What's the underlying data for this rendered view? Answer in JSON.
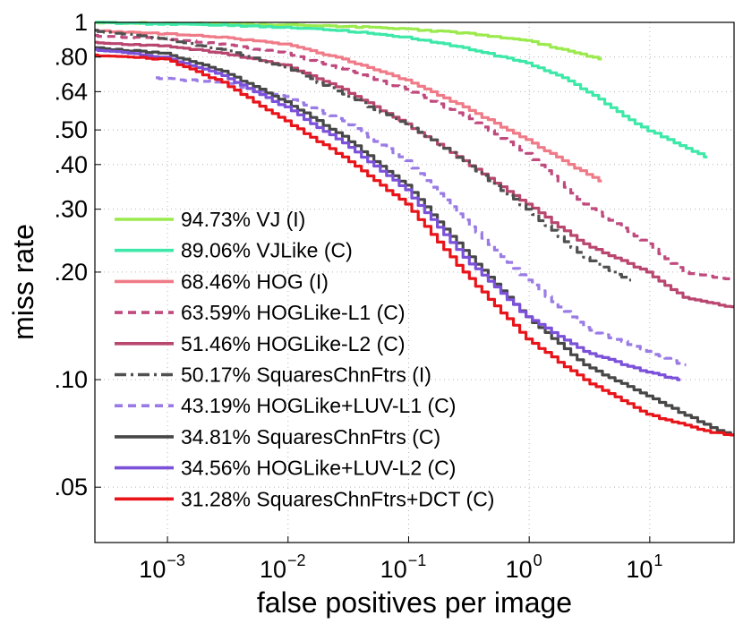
{
  "chart_data": {
    "type": "line",
    "xlabel": "false positives per image",
    "ylabel": "miss rate",
    "xscale": "log",
    "yscale": "log",
    "xlim": [
      0.00025,
      50
    ],
    "ylim": [
      0.035,
      1
    ],
    "grid": true,
    "legend_position": "bottom-left",
    "x_ticks": [
      {
        "value": 0.001,
        "base": "10",
        "exp": "−3"
      },
      {
        "value": 0.01,
        "base": "10",
        "exp": "−2"
      },
      {
        "value": 0.1,
        "base": "10",
        "exp": "−1"
      },
      {
        "value": 1,
        "base": "10",
        "exp": "0"
      },
      {
        "value": 10,
        "base": "10",
        "exp": "1"
      }
    ],
    "y_ticks": [
      {
        "value": 1,
        "label": "1"
      },
      {
        "value": 0.8,
        "label": ".80"
      },
      {
        "value": 0.64,
        "label": ".64"
      },
      {
        "value": 0.5,
        "label": ".50"
      },
      {
        "value": 0.4,
        "label": ".40"
      },
      {
        "value": 0.3,
        "label": ".30"
      },
      {
        "value": 0.2,
        "label": ".20"
      },
      {
        "value": 0.1,
        "label": ".10"
      },
      {
        "value": 0.05,
        "label": ".05"
      }
    ],
    "series": [
      {
        "name": "94.73% VJ (I)",
        "color": "#9bea4d",
        "dash": "solid",
        "x": [
          0.00025,
          0.001,
          0.01,
          0.05,
          0.1,
          0.3,
          1,
          2,
          4
        ],
        "y": [
          1.0,
          0.995,
          0.985,
          0.97,
          0.96,
          0.935,
          0.89,
          0.84,
          0.79
        ]
      },
      {
        "name": "89.06% VJLike (C)",
        "color": "#3de8a8",
        "dash": "solid",
        "x": [
          0.00025,
          0.001,
          0.003,
          0.01,
          0.03,
          0.1,
          0.3,
          1,
          2,
          4,
          8,
          15,
          30
        ],
        "y": [
          1.0,
          0.99,
          0.985,
          0.97,
          0.95,
          0.91,
          0.85,
          0.77,
          0.7,
          0.61,
          0.52,
          0.47,
          0.42
        ]
      },
      {
        "name": "68.46% HOG (I)",
        "color": "#f07b88",
        "dash": "solid",
        "x": [
          0.00025,
          0.001,
          0.003,
          0.01,
          0.03,
          0.1,
          0.3,
          1,
          2,
          4
        ],
        "y": [
          0.95,
          0.93,
          0.91,
          0.87,
          0.79,
          0.69,
          0.58,
          0.47,
          0.41,
          0.36
        ]
      },
      {
        "name": "63.59% HOGLike-L1 (C)",
        "color": "#c0497e",
        "dash": "dash",
        "x": [
          0.00025,
          0.001,
          0.003,
          0.01,
          0.03,
          0.1,
          0.3,
          1,
          3,
          10,
          20,
          50
        ],
        "y": [
          0.92,
          0.9,
          0.87,
          0.82,
          0.74,
          0.65,
          0.55,
          0.43,
          0.31,
          0.24,
          0.2,
          0.19
        ]
      },
      {
        "name": "51.46% HOGLike-L2 (C)",
        "color": "#b9466f",
        "dash": "solid",
        "x": [
          0.00025,
          0.001,
          0.003,
          0.01,
          0.03,
          0.1,
          0.3,
          1,
          3,
          10,
          20,
          50
        ],
        "y": [
          0.88,
          0.86,
          0.82,
          0.76,
          0.65,
          0.52,
          0.41,
          0.31,
          0.24,
          0.2,
          0.17,
          0.16
        ]
      },
      {
        "name": "50.17% SquaresChnFtrs (I)",
        "color": "#505050",
        "dash": "dashdot",
        "x": [
          0.00025,
          0.001,
          0.003,
          0.01,
          0.03,
          0.1,
          0.3,
          1,
          3,
          7
        ],
        "y": [
          0.95,
          0.9,
          0.84,
          0.75,
          0.63,
          0.52,
          0.41,
          0.3,
          0.22,
          0.19
        ]
      },
      {
        "name": "43.19% HOGLike+LUV-L1 (C)",
        "color": "#9a7be6",
        "dash": "dash",
        "x": [
          0.0008,
          0.003,
          0.01,
          0.03,
          0.1,
          0.3,
          1,
          3,
          10,
          20
        ],
        "y": [
          0.7,
          0.68,
          0.62,
          0.53,
          0.41,
          0.28,
          0.19,
          0.14,
          0.12,
          0.11
        ]
      },
      {
        "name": "34.81% SquaresChnFtrs (C)",
        "color": "#474747",
        "dash": "solid",
        "x": [
          0.00025,
          0.001,
          0.003,
          0.01,
          0.03,
          0.1,
          0.3,
          1,
          3,
          10,
          30,
          50
        ],
        "y": [
          0.85,
          0.82,
          0.73,
          0.6,
          0.48,
          0.35,
          0.23,
          0.15,
          0.11,
          0.09,
          0.075,
          0.07
        ]
      },
      {
        "name": "34.56% HOGLike+LUV-L2 (C)",
        "color": "#7b51d9",
        "dash": "solid",
        "x": [
          0.00025,
          0.001,
          0.003,
          0.01,
          0.03,
          0.1,
          0.3,
          1,
          3,
          10,
          18
        ],
        "y": [
          0.84,
          0.8,
          0.71,
          0.58,
          0.46,
          0.34,
          0.22,
          0.15,
          0.12,
          0.105,
          0.1
        ]
      },
      {
        "name": "31.28% SquaresChnFtrs+DCT (C)",
        "color": "#e8141a",
        "dash": "solid",
        "x": [
          0.00025,
          0.001,
          0.003,
          0.01,
          0.03,
          0.1,
          0.3,
          1,
          3,
          10,
          30,
          50
        ],
        "y": [
          0.81,
          0.79,
          0.68,
          0.53,
          0.42,
          0.31,
          0.2,
          0.13,
          0.1,
          0.08,
          0.072,
          0.07
        ]
      }
    ]
  }
}
